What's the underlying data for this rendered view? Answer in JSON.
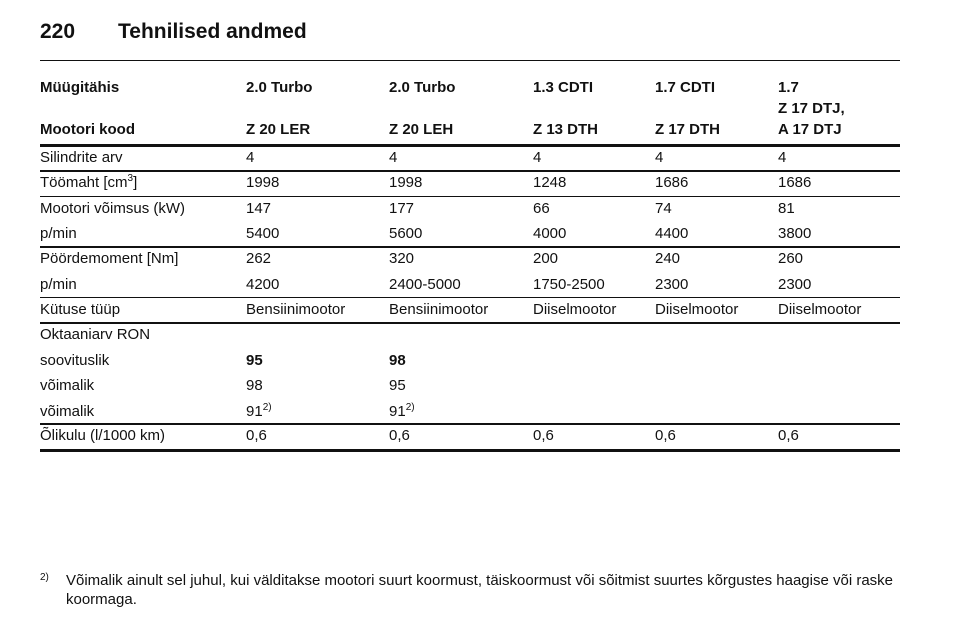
{
  "header": {
    "page_number": "220",
    "title": "Tehnilised andmed"
  },
  "table": {
    "sales_label": "Müügitähis",
    "sales_names": [
      "2.0 Turbo",
      "2.0 Turbo",
      "1.3 CDTI",
      "1.7 CDTI",
      "1.7"
    ],
    "engine_label": "Mootori kood",
    "engine_codes": [
      [
        "Z 20 LER"
      ],
      [
        "Z 20 LEH"
      ],
      [
        "Z 13 DTH"
      ],
      [
        "Z 17 DTH"
      ],
      [
        "Z 17 DTJ,",
        "A 17 DTJ"
      ]
    ],
    "groups": [
      [
        [
          "Silindrite arv",
          "4",
          "4",
          "4",
          "4",
          "4"
        ]
      ],
      [
        [
          {
            "text": "Töömaht [cm",
            "sup": "3",
            "after": "]"
          },
          "1998",
          "1998",
          "1248",
          "1686",
          "1686"
        ]
      ],
      [
        [
          "Mootori võimsus (kW)",
          "147",
          "177",
          "66",
          "74",
          "81"
        ],
        [
          "p/min",
          "5400",
          "5600",
          "4000",
          "4400",
          "3800"
        ]
      ],
      [
        [
          "Pöördemoment [Nm]",
          "262",
          "320",
          "200",
          "240",
          "260"
        ],
        [
          "p/min",
          "4200",
          "2400-5000",
          "1750-2500",
          "2300",
          "2300"
        ]
      ],
      [
        [
          "Kütuse tüüp",
          "Bensiinimootor",
          "Bensiinimootor",
          "Diiselmootor",
          "Diiselmootor",
          "Diiselmootor"
        ]
      ],
      [
        [
          "Oktaaniarv RON"
        ],
        [
          "soovituslik",
          {
            "text": "95",
            "bold": true
          },
          {
            "text": "98",
            "bold": true
          }
        ],
        [
          "võimalik",
          "98",
          "95"
        ],
        [
          "võimalik",
          {
            "text": "91",
            "sup": "2)"
          },
          {
            "text": "91",
            "sup": "2)"
          }
        ]
      ],
      [
        [
          "Õlikulu (l/1000 km)",
          "0,6",
          "0,6",
          "0,6",
          "0,6",
          "0,6"
        ]
      ]
    ]
  },
  "footnote": {
    "marker": "2)",
    "text": "Võimalik ainult sel juhul, kui välditakse mootori suurt koormust, täiskoormust või sõitmist suurtes kõrgustes haagise või raske koormaga."
  }
}
